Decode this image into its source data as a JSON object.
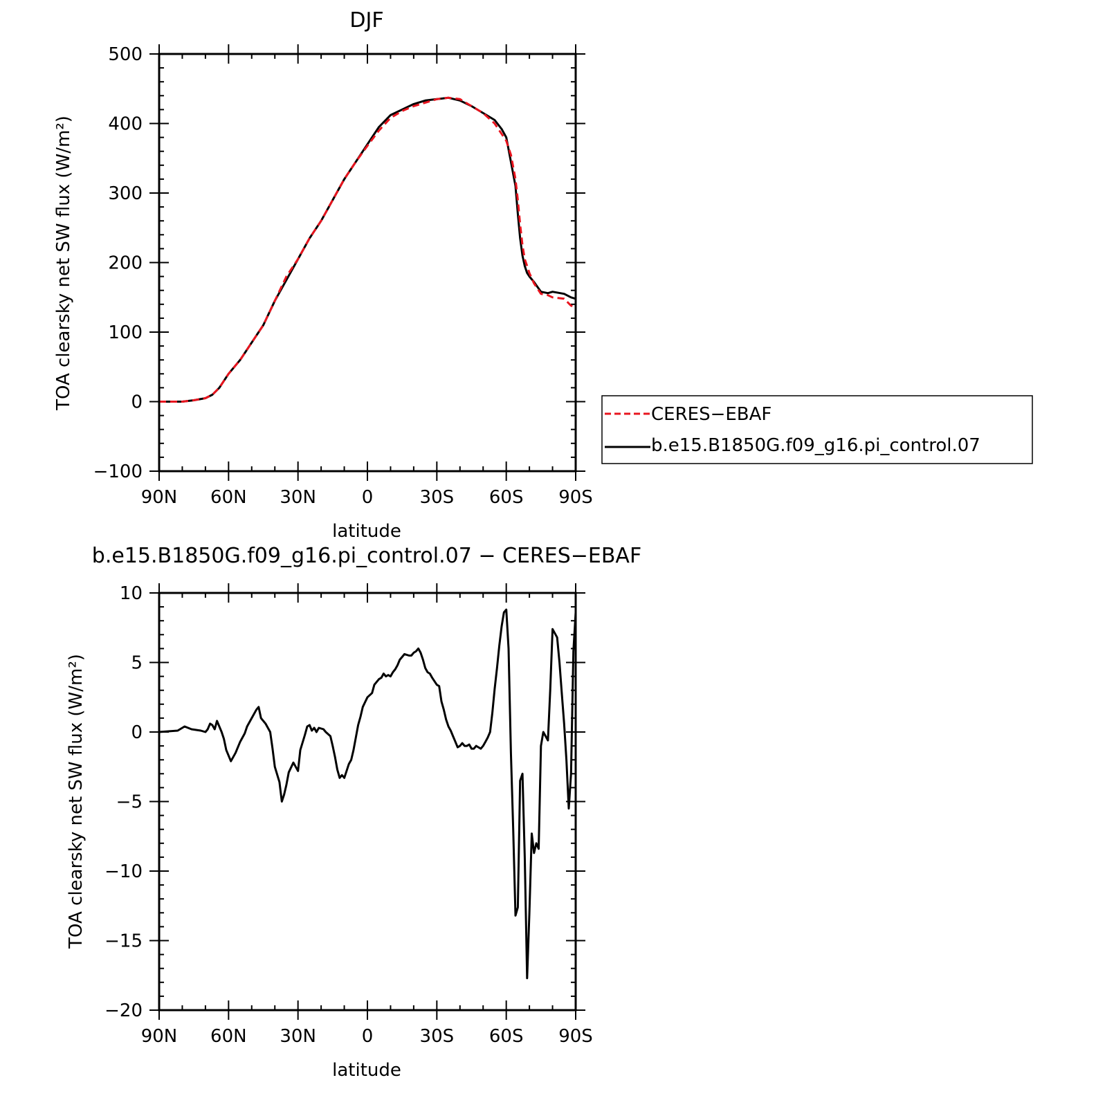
{
  "chart_data": [
    {
      "type": "line",
      "title": "DJF",
      "xlabel": "latitude",
      "ylabel": "TOA clearsky net SW flux (W/m²)",
      "xlim": [
        -90,
        90
      ],
      "ylim": [
        -100,
        500
      ],
      "x_ticks": [
        {
          "value": -90,
          "label": "90N"
        },
        {
          "value": -60,
          "label": "60N"
        },
        {
          "value": -30,
          "label": "30N"
        },
        {
          "value": 0,
          "label": "0"
        },
        {
          "value": 30,
          "label": "30S"
        },
        {
          "value": 60,
          "label": "60S"
        },
        {
          "value": 90,
          "label": "90S"
        }
      ],
      "y_ticks": [
        {
          "value": -100,
          "label": "−100"
        },
        {
          "value": 0,
          "label": "0"
        },
        {
          "value": 100,
          "label": "100"
        },
        {
          "value": 200,
          "label": "200"
        },
        {
          "value": 300,
          "label": "300"
        },
        {
          "value": 400,
          "label": "400"
        },
        {
          "value": 500,
          "label": "500"
        }
      ],
      "legend_position": "right",
      "series": [
        {
          "name": "CERES−EBAF",
          "color": "#e8141e",
          "dash": "dashed",
          "x": [
            -90,
            -85,
            -80,
            -75,
            -70,
            -67,
            -64,
            -60,
            -55,
            -50,
            -45,
            -40,
            -35,
            -30,
            -25,
            -20,
            -15,
            -10,
            -5,
            0,
            5,
            10,
            15,
            20,
            25,
            30,
            35,
            40,
            45,
            50,
            55,
            58,
            60,
            62,
            64,
            65,
            66,
            67,
            68,
            69,
            70,
            72,
            75,
            78,
            80,
            85,
            88,
            90
          ],
          "y": [
            0,
            0,
            0,
            2,
            5,
            10,
            20,
            40,
            60,
            85,
            110,
            145,
            180,
            205,
            235,
            260,
            290,
            320,
            345,
            368,
            390,
            408,
            418,
            425,
            430,
            435,
            437,
            435,
            425,
            415,
            400,
            385,
            375,
            355,
            320,
            290,
            255,
            225,
            205,
            195,
            185,
            170,
            155,
            153,
            150,
            148,
            138,
            136
          ]
        },
        {
          "name": "b.e15.B1850G.f09_g16.pi_control.07",
          "color": "#000000",
          "dash": "solid",
          "x": [
            -90,
            -85,
            -80,
            -75,
            -70,
            -67,
            -64,
            -60,
            -55,
            -50,
            -45,
            -40,
            -35,
            -30,
            -25,
            -20,
            -15,
            -10,
            -5,
            0,
            5,
            10,
            15,
            20,
            25,
            30,
            35,
            40,
            45,
            50,
            55,
            58,
            60,
            62,
            64,
            65,
            66,
            67,
            68,
            69,
            70,
            72,
            75,
            78,
            80,
            85,
            88,
            90
          ],
          "y": [
            0,
            0,
            0,
            2,
            5,
            10,
            20,
            40,
            60,
            85,
            110,
            145,
            175,
            205,
            235,
            260,
            290,
            320,
            345,
            370,
            395,
            412,
            420,
            428,
            433,
            435,
            437,
            433,
            425,
            415,
            405,
            392,
            380,
            345,
            310,
            270,
            235,
            210,
            195,
            185,
            180,
            172,
            158,
            156,
            158,
            155,
            150,
            148
          ]
        }
      ]
    },
    {
      "type": "line",
      "title": "b.e15.B1850G.f09_g16.pi_control.07 − CERES−EBAF",
      "xlabel": "latitude",
      "ylabel": "TOA clearsky net SW flux (W/m²)",
      "xlim": [
        -90,
        90
      ],
      "ylim": [
        -20,
        10
      ],
      "x_ticks": [
        {
          "value": -90,
          "label": "90N"
        },
        {
          "value": -60,
          "label": "60N"
        },
        {
          "value": -30,
          "label": "30N"
        },
        {
          "value": 0,
          "label": "0"
        },
        {
          "value": 30,
          "label": "30S"
        },
        {
          "value": 60,
          "label": "60S"
        },
        {
          "value": 90,
          "label": "90S"
        }
      ],
      "y_ticks": [
        {
          "value": -20,
          "label": "−20"
        },
        {
          "value": -15,
          "label": "−15"
        },
        {
          "value": -10,
          "label": "−10"
        },
        {
          "value": -5,
          "label": "−5"
        },
        {
          "value": 0,
          "label": "0"
        },
        {
          "value": 5,
          "label": "5"
        },
        {
          "value": 10,
          "label": "10"
        }
      ],
      "series": [
        {
          "color": "#000000",
          "dash": "solid",
          "x": [
            -90,
            -82,
            -79,
            -76,
            -72,
            -70,
            -69,
            -68,
            -67,
            -66,
            -65,
            -63,
            -62,
            -61,
            -59,
            -57,
            -55,
            -53,
            -52,
            -50,
            -48,
            -47,
            -46,
            -44,
            -42,
            -41,
            -40,
            -38,
            -37,
            -36,
            -35,
            -34,
            -32,
            -30,
            -29,
            -27,
            -26,
            -25,
            -24,
            -23,
            -22,
            -21,
            -19,
            -18,
            -16,
            -15,
            -14,
            -13,
            -12,
            -11,
            -10,
            -9,
            -8,
            -7,
            -6,
            -4,
            -3,
            -2,
            0,
            2,
            3,
            4,
            5,
            6,
            7,
            8,
            9,
            10,
            11,
            12,
            13,
            14,
            15,
            16,
            18,
            19,
            20,
            21,
            22,
            23,
            24,
            25,
            26,
            27,
            28,
            30,
            31,
            32,
            33,
            34,
            35,
            36,
            37,
            38,
            39,
            40,
            41,
            42,
            43,
            44,
            45,
            46,
            47,
            48,
            49,
            50,
            51,
            52,
            53,
            54,
            55,
            56,
            57,
            58,
            59,
            60,
            61,
            62,
            63,
            64,
            65,
            66,
            67,
            68,
            69,
            70,
            71,
            72,
            73,
            74,
            75,
            76,
            77,
            78,
            79,
            80,
            81,
            82,
            83,
            84,
            85,
            86,
            87,
            88,
            89,
            90
          ],
          "y": [
            0,
            0.1,
            0.4,
            0.2,
            0.1,
            0,
            0.2,
            0.6,
            0.5,
            0.2,
            0.8,
            0,
            -0.5,
            -1.3,
            -2.1,
            -1.5,
            -0.7,
            -0.1,
            0.4,
            1.0,
            1.6,
            1.8,
            1.0,
            0.6,
            0,
            -1.2,
            -2.5,
            -3.6,
            -5.0,
            -4.5,
            -3.8,
            -2.9,
            -2.2,
            -2.8,
            -1.3,
            -0.2,
            0.4,
            0.5,
            0.1,
            0.3,
            0,
            0.3,
            0.2,
            0,
            -0.3,
            -1.0,
            -1.8,
            -2.7,
            -3.3,
            -3.1,
            -3.3,
            -2.8,
            -2.3,
            -2.0,
            -1.3,
            0.5,
            1.1,
            1.8,
            2.5,
            2.8,
            3.4,
            3.6,
            3.8,
            3.9,
            4.2,
            4.0,
            4.1,
            4.0,
            4.3,
            4.5,
            4.8,
            5.2,
            5.4,
            5.6,
            5.5,
            5.5,
            5.7,
            5.8,
            6.0,
            5.7,
            5.2,
            4.6,
            4.3,
            4.2,
            3.9,
            3.4,
            3.3,
            2.2,
            1.6,
            0.9,
            0.4,
            0.1,
            -0.3,
            -0.7,
            -1.1,
            -1.0,
            -0.8,
            -1.0,
            -1.0,
            -0.9,
            -1.2,
            -1.2,
            -1.0,
            -1.1,
            -1.2,
            -1.0,
            -0.7,
            -0.4,
            0,
            1.4,
            3.1,
            4.6,
            6.2,
            7.6,
            8.6,
            8.8,
            6.0,
            -1.5,
            -7.0,
            -13.2,
            -12.6,
            -3.5,
            -3.0,
            -9.0,
            -17.7,
            -13.0,
            -7.3,
            -8.7,
            -8.0,
            -8.4,
            -1.0,
            0,
            -0.3,
            -0.6,
            3.0,
            7.4,
            7.1,
            6.8,
            5.0,
            2.8,
            0.6,
            -2.0,
            -5.5,
            -3.0,
            5.8,
            8.6
          ]
        }
      ]
    }
  ]
}
